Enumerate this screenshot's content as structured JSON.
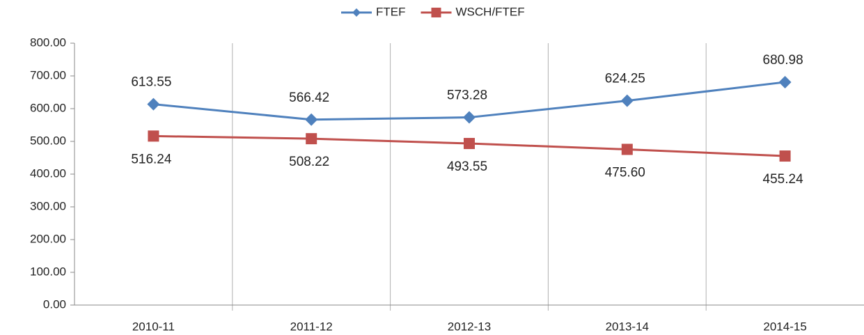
{
  "chart_data": {
    "type": "line",
    "categories": [
      "2010-11",
      "2011-12",
      "2012-13",
      "2013-14",
      "2014-15"
    ],
    "series": [
      {
        "name": "FTEF",
        "color": "#4f81bd",
        "marker": "diamond",
        "values": [
          613.55,
          566.42,
          573.28,
          624.25,
          680.98
        ]
      },
      {
        "name": "WSCH/FTEF",
        "color": "#c0504d",
        "marker": "square",
        "values": [
          516.24,
          508.22,
          493.55,
          475.6,
          455.24
        ],
        "value_labels": [
          "516.24",
          "508.22",
          "493.55",
          "475.60",
          "455.24"
        ]
      }
    ],
    "ylim": [
      0,
      800
    ],
    "yticks": [
      {
        "value": 0,
        "label": "0.00"
      },
      {
        "value": 100,
        "label": "100.00"
      },
      {
        "value": 200,
        "label": "200.00"
      },
      {
        "value": 300,
        "label": "300.00"
      },
      {
        "value": 400,
        "label": "400.00"
      },
      {
        "value": 500,
        "label": "500.00"
      },
      {
        "value": 600,
        "label": "600.00"
      },
      {
        "value": 700,
        "label": "700.00"
      },
      {
        "value": 800,
        "label": "800.00"
      }
    ],
    "vertical_grid": true,
    "legend": "top"
  }
}
